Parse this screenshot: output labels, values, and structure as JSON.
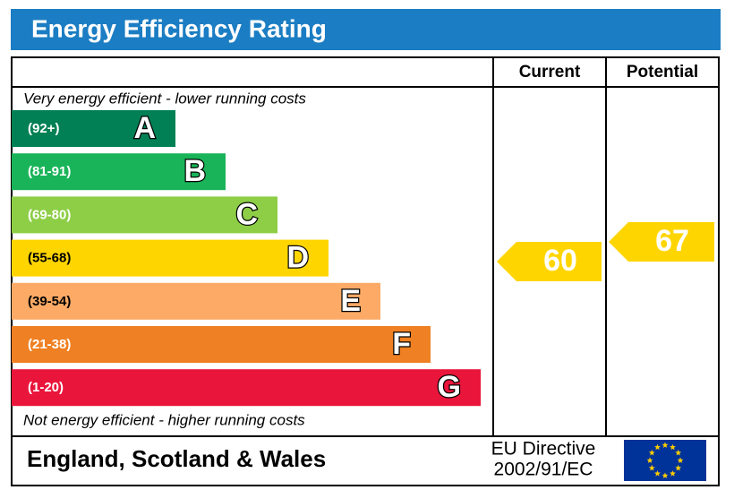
{
  "header": {
    "title": "Energy Efficiency Rating"
  },
  "columns": [
    "Current",
    "Potential"
  ],
  "top_note": "Very energy efficient - lower running costs",
  "bottom_note": "Not energy efficient - higher running costs",
  "bands": [
    {
      "range": "(92+)",
      "letter": "A",
      "color": "#008054"
    },
    {
      "range": "(81-91)",
      "letter": "B",
      "color": "#19b459"
    },
    {
      "range": "(69-80)",
      "letter": "C",
      "color": "#8dce46"
    },
    {
      "range": "(55-68)",
      "letter": "D",
      "color": "#ffd500"
    },
    {
      "range": "(39-54)",
      "letter": "E",
      "color": "#fcaa65"
    },
    {
      "range": "(21-38)",
      "letter": "F",
      "color": "#ef8023"
    },
    {
      "range": "(1-20)",
      "letter": "G",
      "color": "#e9153b"
    }
  ],
  "current": 60,
  "potential": 67,
  "footer": {
    "region": "England, Scotland & Wales",
    "directive": [
      "EU Directive",
      "2002/91/EC"
    ]
  }
}
